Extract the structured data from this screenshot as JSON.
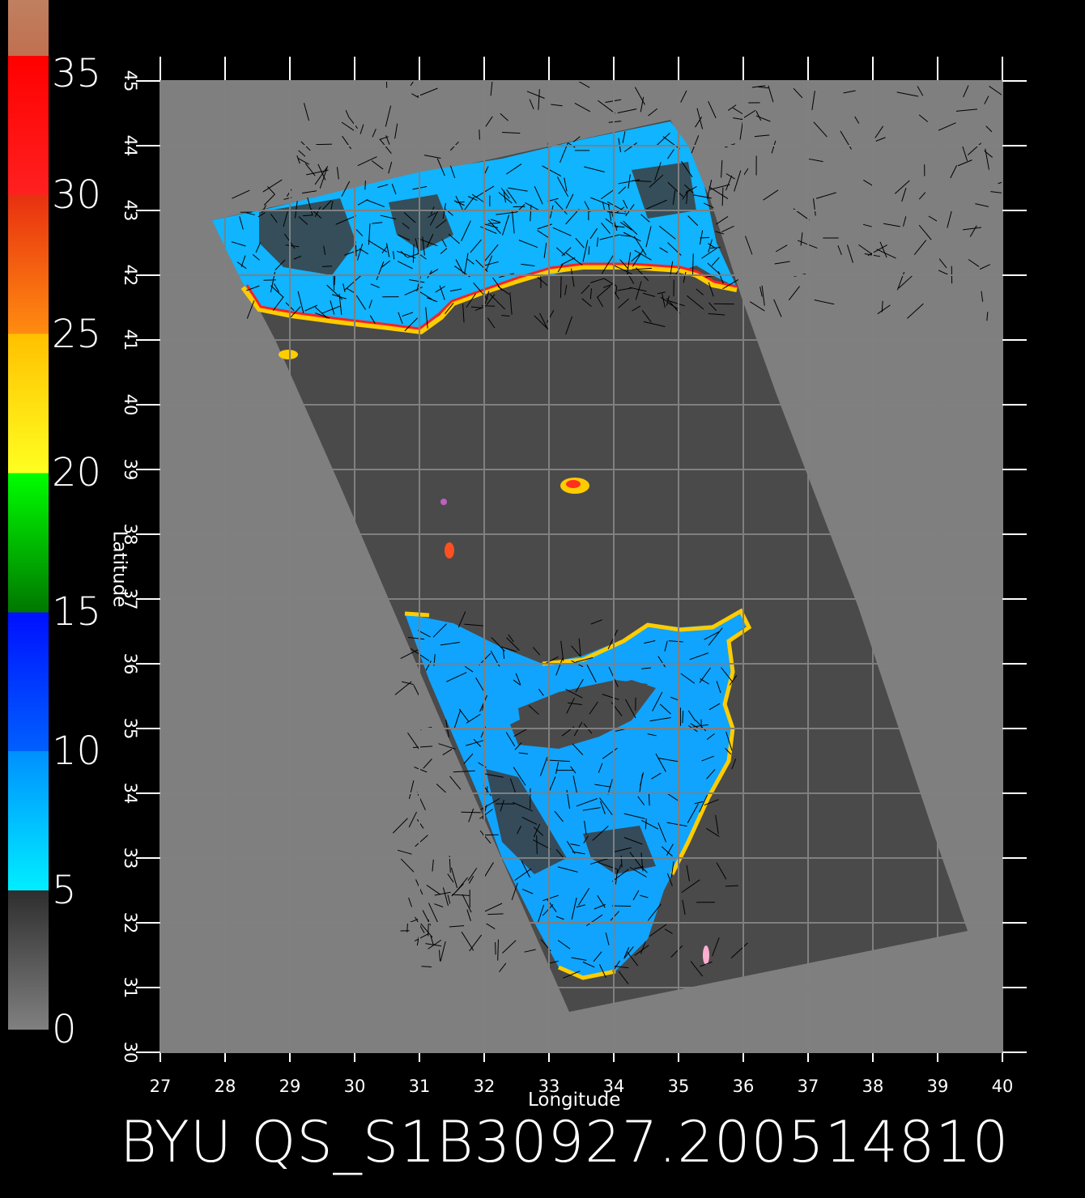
{
  "colorbar": {
    "labels": [
      "35",
      "30",
      "25",
      "20",
      "15",
      "10",
      "5",
      "0"
    ],
    "bands": [
      {
        "from": 0,
        "to": 5,
        "colors": [
          "#808080",
          "#2e2e2e"
        ]
      },
      {
        "from": 5,
        "to": 10,
        "colors": [
          "#00eeff",
          "#0090ff"
        ]
      },
      {
        "from": 10,
        "to": 15,
        "colors": [
          "#0060ff",
          "#0010ff"
        ]
      },
      {
        "from": 15,
        "to": 20,
        "colors": [
          "#007700",
          "#00ff00"
        ]
      },
      {
        "from": 20,
        "to": 25,
        "colors": [
          "#ffff20",
          "#ffc000"
        ]
      },
      {
        "from": 25,
        "to": 30,
        "colors": [
          "#ff8c10",
          "#e83010"
        ]
      },
      {
        "from": 30,
        "to": 35,
        "colors": [
          "#ff2020",
          "#ff0000"
        ]
      },
      {
        "from": 35,
        "to": 37,
        "colors": [
          "#c07050",
          "#c08060"
        ]
      }
    ]
  },
  "axes": {
    "xlabel": "Longitude",
    "ylabel": "Latitude",
    "x_ticks": [
      "27",
      "28",
      "29",
      "30",
      "31",
      "32",
      "33",
      "34",
      "35",
      "36",
      "37",
      "38",
      "39",
      "40"
    ],
    "y_ticks": [
      "30",
      "31",
      "32",
      "33",
      "34",
      "35",
      "36",
      "37",
      "38",
      "39",
      "40",
      "41",
      "42",
      "43",
      "44",
      "45"
    ],
    "lon_range": [
      27,
      40
    ],
    "lat_range": [
      30,
      45
    ]
  },
  "footer": {
    "title": "BYU  QS_S1B30927.200514810"
  },
  "colors": {
    "background": "#000000",
    "land": "#7f7f7f",
    "swath": "#4a4a4a",
    "grid": "#000000",
    "wind_low": "#0a8cff",
    "wind_mid": "#18c8ff"
  }
}
